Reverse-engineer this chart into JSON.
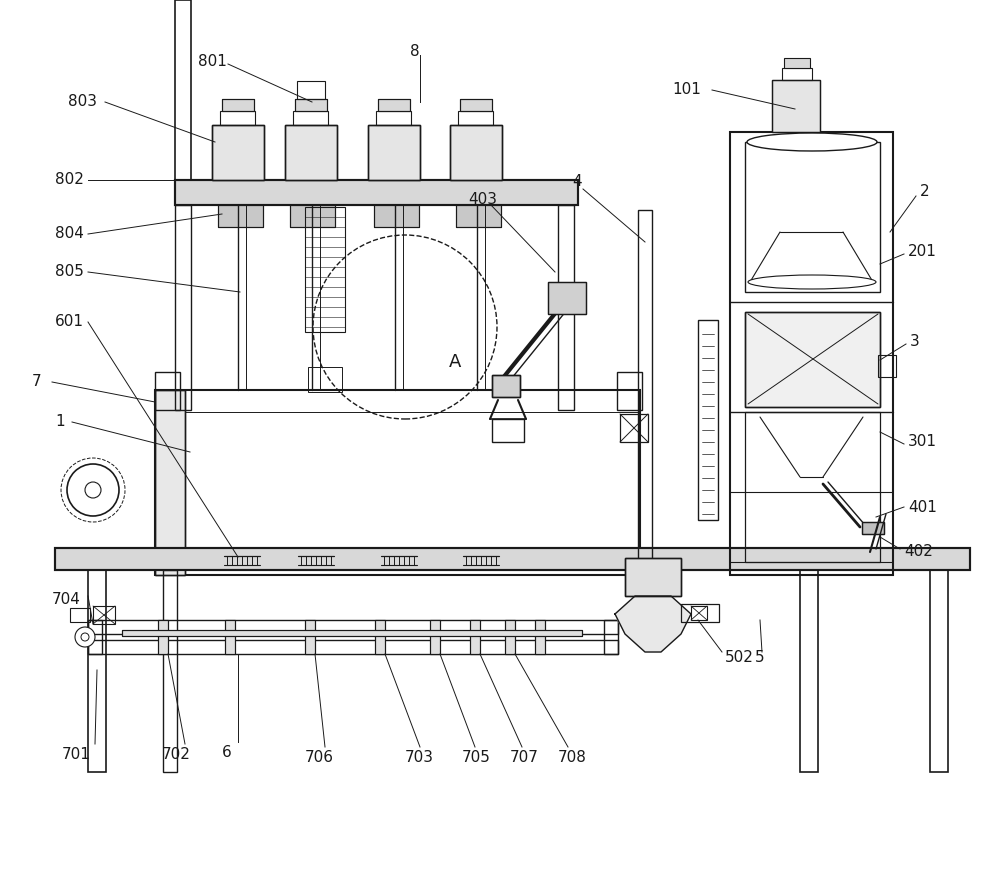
{
  "bg_color": "#ffffff",
  "line_color": "#1a1a1a",
  "label_color": "#1a1a1a",
  "figsize": [
    10.0,
    8.72
  ],
  "dpi": 100
}
